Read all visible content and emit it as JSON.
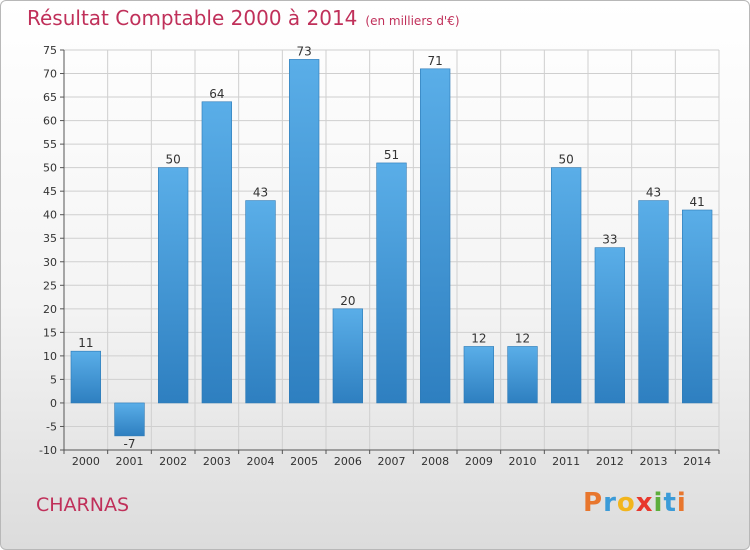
{
  "title": "Résultat Comptable 2000 à 2014",
  "subtitle": "(en milliers d'€)",
  "commune": "CHARNAS",
  "logo": {
    "text": "Proxiti",
    "letters": [
      "P",
      "r",
      "o",
      "x",
      "i",
      "t",
      "i"
    ],
    "colors": [
      "#e8762d",
      "#3b9bd8",
      "#f2b51c",
      "#e8382d",
      "#5dae3c",
      "#3b9bd8",
      "#e8762d"
    ]
  },
  "colors": {
    "bar_top": "#5aaee8",
    "bar_bottom": "#2e7fc0",
    "title": "#c0305a",
    "grid": "#cfcfcf"
  },
  "chart_data": {
    "type": "bar",
    "title": "Résultat Comptable 2000 à 2014",
    "xlabel": "",
    "ylabel": "",
    "ylim": [
      -10,
      75
    ],
    "ytick_step": 5,
    "categories": [
      "2000",
      "2001",
      "2002",
      "2003",
      "2004",
      "2005",
      "2006",
      "2007",
      "2008",
      "2009",
      "2010",
      "2011",
      "2012",
      "2013",
      "2014"
    ],
    "values": [
      11,
      -7,
      50,
      64,
      43,
      73,
      20,
      51,
      71,
      12,
      12,
      50,
      33,
      43,
      41
    ],
    "grid": true
  }
}
